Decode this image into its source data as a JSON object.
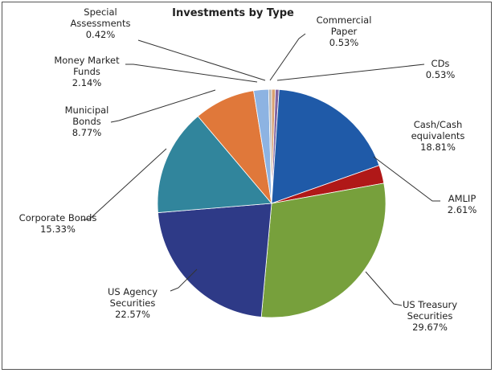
{
  "chart_data": {
    "type": "pie",
    "title": "Investments by Type",
    "categories": [
      "Commercial Paper",
      "CDs",
      "Cash/Cash equivalents",
      "AMLIP",
      "US Treasury Securities",
      "US Agency Securities",
      "Corporate Bonds",
      "Municipal Bonds",
      "Money Market Funds",
      "Special Assessments"
    ],
    "values": [
      0.53,
      0.53,
      18.81,
      2.61,
      29.67,
      22.57,
      15.33,
      8.77,
      2.14,
      0.42
    ],
    "value_labels": [
      "0.53%",
      "0.53%",
      "18.81%",
      "2.61%",
      "29.67%",
      "22.57%",
      "15.33%",
      "8.77%",
      "2.14%",
      "0.42%"
    ],
    "colors": [
      "#d8a070",
      "#8064a2",
      "#1f5aa8",
      "#b01818",
      "#77a03c",
      "#2e3a87",
      "#31859c",
      "#e0783a",
      "#8db3e2",
      "#b8b8b8"
    ]
  }
}
